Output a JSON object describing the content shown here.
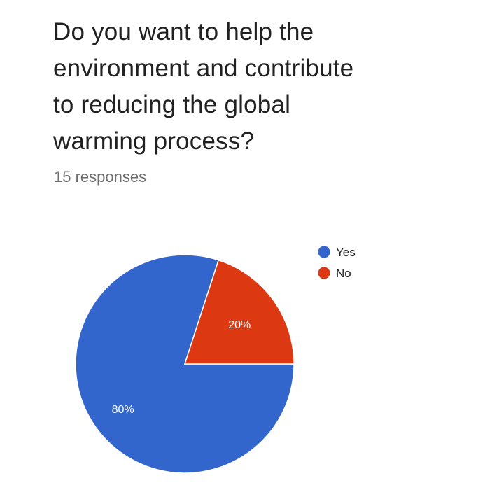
{
  "question": {
    "lines": [
      "Do you want to help the",
      "environment and contribute",
      "to reducing the global",
      "warming process?"
    ]
  },
  "responses_label": "15 responses",
  "colors": {
    "yes": "#3366cc",
    "no": "#dc3912",
    "label_text": "#ffffff"
  },
  "chart_data": {
    "type": "pie",
    "title": "Do you want to help the environment and contribute to reducing the global warming process?",
    "subtitle": "15 responses",
    "categories": [
      "Yes",
      "No"
    ],
    "values": [
      80,
      20
    ],
    "labels": [
      "80%",
      "20%"
    ],
    "colors": [
      "#3366cc",
      "#dc3912"
    ],
    "legend": "right"
  }
}
